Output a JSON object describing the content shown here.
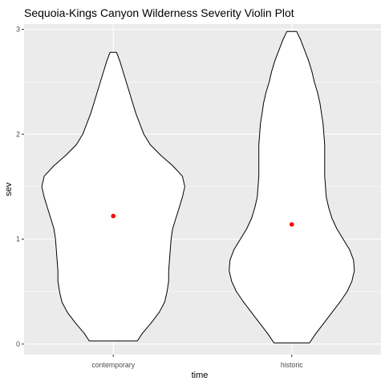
{
  "chart_data": {
    "type": "violin",
    "title": "Sequoia-Kings Canyon Wilderness Severity Violin Plot",
    "xlabel": "time",
    "ylabel": "sev",
    "categories": [
      "contemporary",
      "historic"
    ],
    "ylim": [
      -0.1,
      3.05
    ],
    "y_ticks": [
      "0",
      "1",
      "2",
      "3"
    ],
    "grid": true,
    "panel_background": "#ebebeb",
    "grid_color": "#ffffff",
    "violin_fill": "#ffffff",
    "violin_outline": "#000000",
    "mean_point_color": "#ff0000",
    "means": [
      1.22,
      1.14
    ],
    "violins": [
      {
        "name": "contemporary",
        "range": [
          0.03,
          2.78
        ],
        "profile": [
          [
            0.03,
            0.3
          ],
          [
            0.1,
            0.36
          ],
          [
            0.2,
            0.47
          ],
          [
            0.3,
            0.57
          ],
          [
            0.4,
            0.64
          ],
          [
            0.5,
            0.67
          ],
          [
            0.6,
            0.69
          ],
          [
            0.7,
            0.69
          ],
          [
            0.8,
            0.7
          ],
          [
            0.9,
            0.71
          ],
          [
            1.0,
            0.72
          ],
          [
            1.1,
            0.74
          ],
          [
            1.2,
            0.78
          ],
          [
            1.3,
            0.82
          ],
          [
            1.4,
            0.86
          ],
          [
            1.5,
            0.89
          ],
          [
            1.6,
            0.86
          ],
          [
            1.7,
            0.74
          ],
          [
            1.8,
            0.59
          ],
          [
            1.9,
            0.46
          ],
          [
            2.0,
            0.38
          ],
          [
            2.1,
            0.33
          ],
          [
            2.2,
            0.28
          ],
          [
            2.3,
            0.24
          ],
          [
            2.4,
            0.2
          ],
          [
            2.5,
            0.16
          ],
          [
            2.6,
            0.12
          ],
          [
            2.7,
            0.08
          ],
          [
            2.78,
            0.04
          ]
        ]
      },
      {
        "name": "historic",
        "range": [
          0.01,
          2.98
        ],
        "profile": [
          [
            0.01,
            0.22
          ],
          [
            0.1,
            0.3
          ],
          [
            0.2,
            0.4
          ],
          [
            0.3,
            0.5
          ],
          [
            0.4,
            0.6
          ],
          [
            0.5,
            0.69
          ],
          [
            0.6,
            0.75
          ],
          [
            0.7,
            0.78
          ],
          [
            0.8,
            0.77
          ],
          [
            0.9,
            0.72
          ],
          [
            1.0,
            0.64
          ],
          [
            1.1,
            0.56
          ],
          [
            1.2,
            0.5
          ],
          [
            1.3,
            0.46
          ],
          [
            1.4,
            0.43
          ],
          [
            1.5,
            0.42
          ],
          [
            1.6,
            0.41
          ],
          [
            1.7,
            0.41
          ],
          [
            1.8,
            0.41
          ],
          [
            1.9,
            0.41
          ],
          [
            2.0,
            0.4
          ],
          [
            2.1,
            0.39
          ],
          [
            2.2,
            0.37
          ],
          [
            2.3,
            0.35
          ],
          [
            2.4,
            0.32
          ],
          [
            2.5,
            0.28
          ],
          [
            2.6,
            0.25
          ],
          [
            2.7,
            0.21
          ],
          [
            2.8,
            0.16
          ],
          [
            2.9,
            0.11
          ],
          [
            2.98,
            0.06
          ]
        ]
      }
    ]
  }
}
